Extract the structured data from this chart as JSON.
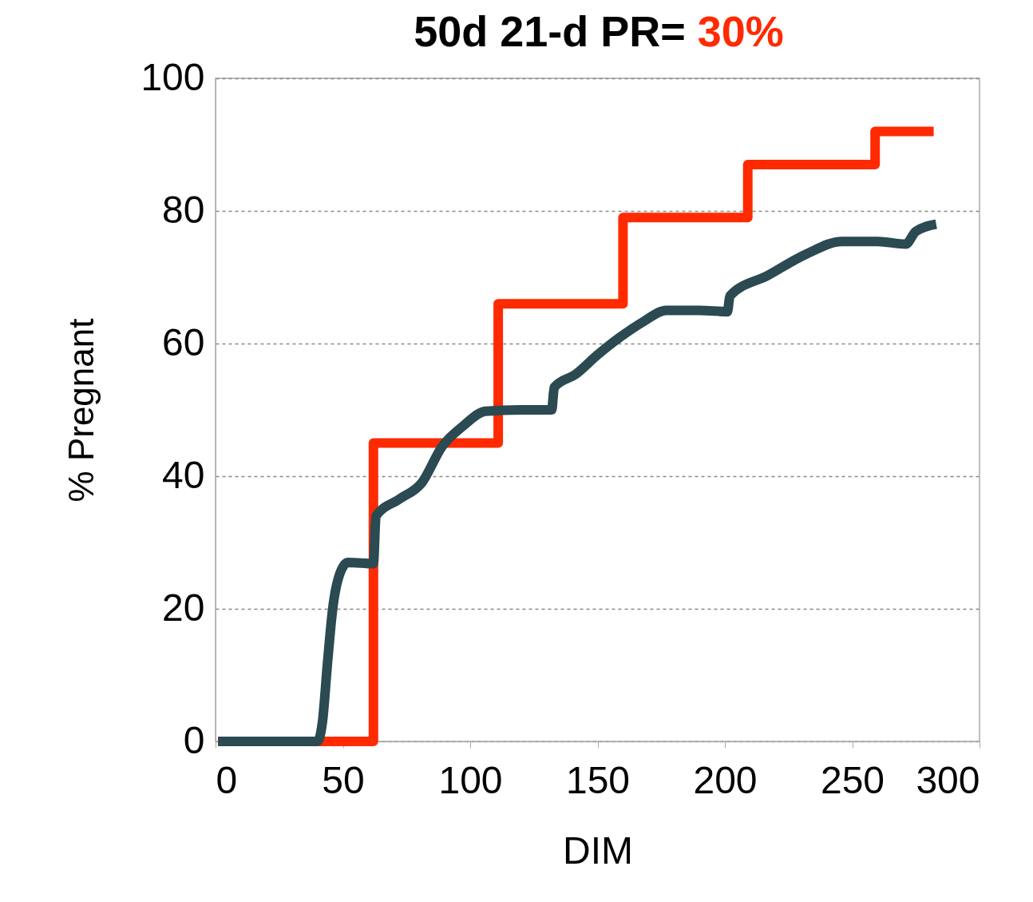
{
  "chart_data": {
    "type": "line",
    "title": "50d 21-d PR= 30%",
    "xlabel": "DIM",
    "ylabel": "% Pregnant",
    "xlim": [
      0,
      300
    ],
    "xticks": [
      0,
      50,
      100,
      150,
      200,
      250,
      300
    ],
    "ylim": [
      0,
      100
    ],
    "yticks": [
      0,
      20,
      40,
      60,
      80,
      100
    ],
    "grid": "y",
    "marker": "none",
    "line_style": "solid",
    "series": [
      {
        "type": "step",
        "color": "#ff2a00",
        "x": [
          1,
          62,
          111,
          160,
          209,
          259,
          282
        ],
        "values": [
          0,
          45,
          66,
          79,
          87,
          92,
          92
        ]
      },
      {
        "color": "#2b4a52",
        "x": [
          1,
          40,
          42,
          44,
          46,
          49,
          52,
          62,
          63,
          72,
          81,
          89,
          97,
          106,
          120,
          132,
          133,
          141.5,
          150,
          159,
          168,
          177,
          190,
          201,
          202,
          217,
          232,
          246,
          260,
          271,
          275,
          283
        ],
        "values": [
          0,
          0,
          3,
          12,
          20,
          25.5,
          27,
          26.8,
          34,
          36.5,
          39,
          44.5,
          47.5,
          49.8,
          50,
          50,
          53.4,
          55.4,
          58.3,
          61,
          63.3,
          65,
          65,
          64.8,
          67.2,
          70.3,
          73.5,
          75.4,
          75.4,
          75,
          76.9,
          78
        ]
      }
    ]
  }
}
